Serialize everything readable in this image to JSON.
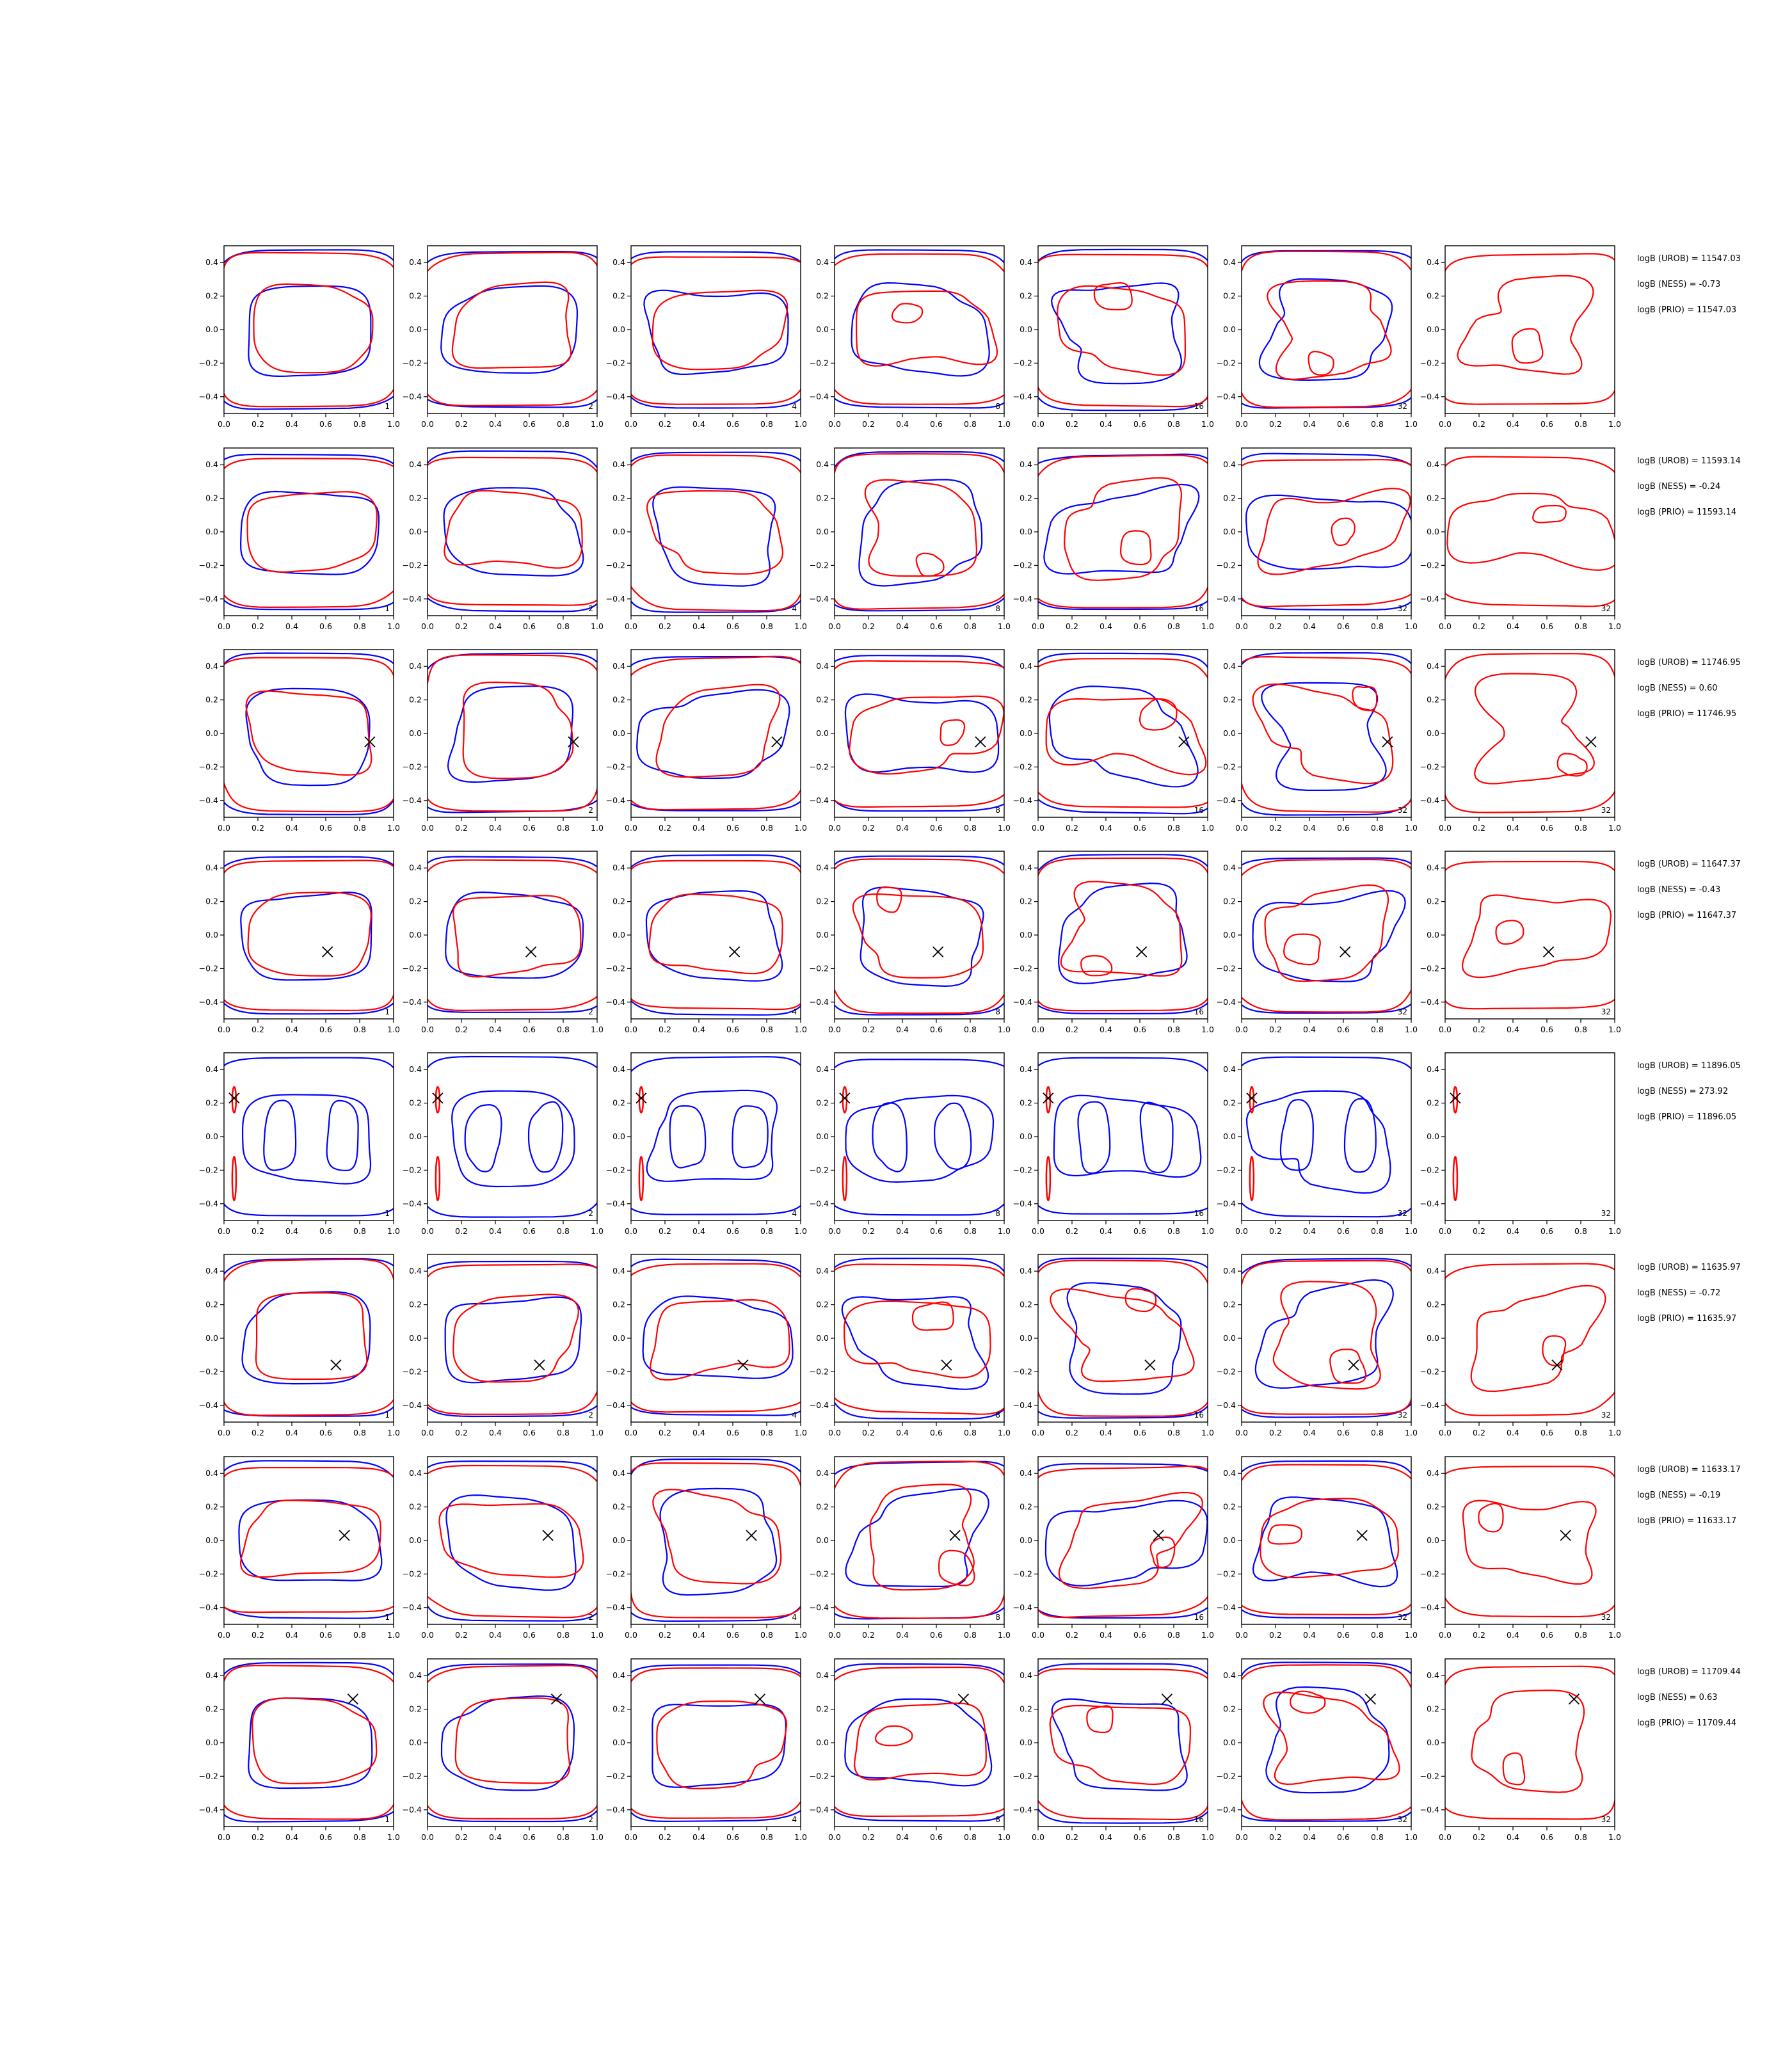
{
  "colors": {
    "series_a": "#0000ff",
    "series_b": "#ff0000",
    "marker": "#000000",
    "axes": "#000000"
  },
  "chart_data": {
    "type": "contour-grid",
    "rows": 8,
    "cols": 7,
    "column_labels": [
      "1",
      "2",
      "4",
      "8",
      "16",
      "32",
      "32"
    ],
    "xlim": [
      0.0,
      1.0
    ],
    "ylim": [
      -0.5,
      0.5
    ],
    "x_ticks": [
      "0.0",
      "0.2",
      "0.4",
      "0.6",
      "0.8",
      "1.0"
    ],
    "y_ticks": [
      "0.4",
      "0.2",
      "0.0",
      "−0.2",
      "−0.4"
    ],
    "markers": [
      null,
      null,
      [
        0.86,
        -0.05
      ],
      [
        0.61,
        -0.1
      ],
      [
        0.06,
        0.23
      ],
      [
        0.66,
        -0.16
      ],
      [
        0.71,
        0.03
      ],
      [
        0.76,
        0.26
      ]
    ],
    "panel_labels_visible": [
      [
        true,
        true,
        true,
        true,
        true,
        true,
        false
      ],
      [
        true,
        true,
        true,
        true,
        true,
        true,
        true
      ],
      [
        false,
        true,
        false,
        true,
        true,
        true,
        true
      ],
      [
        true,
        true,
        true,
        true,
        true,
        true,
        true
      ],
      [
        true,
        true,
        true,
        true,
        true,
        true,
        true
      ],
      [
        true,
        true,
        true,
        true,
        true,
        true,
        true
      ],
      [
        true,
        true,
        true,
        true,
        true,
        true,
        true
      ],
      [
        true,
        true,
        true,
        true,
        true,
        true,
        true
      ]
    ],
    "annotations": [
      [
        "logB (UROB) = 11547.03",
        "logB (NESS) = -0.73",
        "logB (PRIO) = 11547.03"
      ],
      [
        "logB (UROB) = 11593.14",
        "logB (NESS) = -0.24",
        "logB (PRIO) = 11593.14"
      ],
      [
        "logB (UROB) = 11746.95",
        "logB (NESS) = 0.60",
        "logB (PRIO) = 11746.95"
      ],
      [
        "logB (UROB) = 11647.37",
        "logB (NESS) = -0.43",
        "logB (PRIO) = 11647.37"
      ],
      [
        "logB (UROB) = 11896.05",
        "logB (NESS) = 273.92",
        "logB (PRIO) = 11896.05"
      ],
      [
        "logB (UROB) = 11635.97",
        "logB (NESS) = -0.72",
        "logB (PRIO) = 11635.97"
      ],
      [
        "logB (UROB) = 11633.17",
        "logB (NESS) = -0.19",
        "logB (PRIO) = 11633.17"
      ],
      [
        "logB (UROB) = 11709.44",
        "logB (NESS) = 0.63",
        "logB (PRIO) = 11709.44"
      ]
    ]
  }
}
